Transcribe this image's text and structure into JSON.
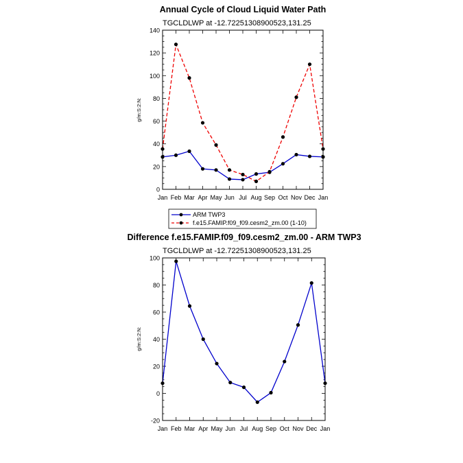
{
  "chart_data": [
    {
      "type": "line",
      "title": "Annual Cycle of Cloud Liquid Water Path",
      "subtitle": "TGCLDLWP at -12.72251308900523,131.25",
      "ylabel": "g/m:S:2:N:",
      "xlabel": "",
      "categories": [
        "Jan",
        "Feb",
        "Mar",
        "Apr",
        "May",
        "Jun",
        "Jul",
        "Aug",
        "Sep",
        "Oct",
        "Nov",
        "Dec",
        "Jan"
      ],
      "ylim": [
        0,
        140
      ],
      "yticks": [
        0,
        20,
        40,
        60,
        80,
        100,
        120,
        140
      ],
      "grid": false,
      "legend": "below",
      "series": [
        {
          "name": "ARM TWP3",
          "color": "#0000cc",
          "dash": "solid",
          "values": [
            28.5,
            30,
            33.5,
            18,
            17,
            9,
            8.5,
            13.5,
            15,
            22.5,
            30.5,
            29,
            28.5
          ]
        },
        {
          "name": "f.e15.FAMIP.f09_f09.cesm2_zm.00 (1-10)",
          "color": "#ee0000",
          "dash": "dashed",
          "values": [
            35.5,
            127.5,
            98,
            58.5,
            39,
            17,
            13,
            7,
            15.5,
            46,
            81,
            110,
            35.5
          ]
        }
      ]
    },
    {
      "type": "line",
      "title": "Difference f.e15.FAMIP.f09_f09.cesm2_zm.00 - ARM TWP3",
      "subtitle": "TGCLDLWP at -12.72251308900523,131.25",
      "ylabel": "g/m:S:2:N:",
      "xlabel": "",
      "categories": [
        "Jan",
        "Feb",
        "Mar",
        "Apr",
        "May",
        "Jun",
        "Jul",
        "Aug",
        "Sep",
        "Oct",
        "Nov",
        "Dec",
        "Jan"
      ],
      "ylim": [
        -20,
        100
      ],
      "yticks": [
        -20,
        0,
        20,
        40,
        60,
        80,
        100
      ],
      "grid": false,
      "series": [
        {
          "color": "#0000cc",
          "dash": "solid",
          "values": [
            7.5,
            97.5,
            64.5,
            40,
            22,
            8,
            4.5,
            -6.5,
            0.5,
            23.5,
            50.5,
            81.5,
            7.5
          ]
        }
      ]
    }
  ]
}
